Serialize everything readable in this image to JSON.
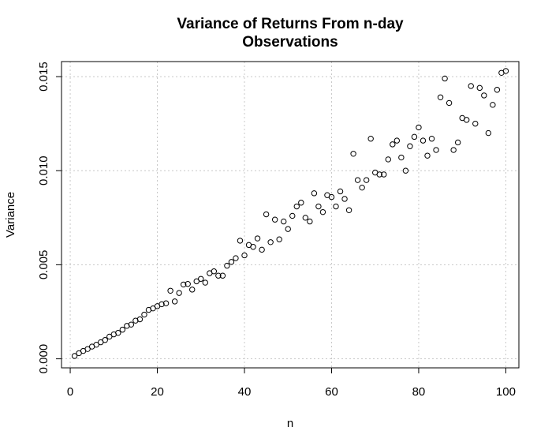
{
  "chart_data": {
    "type": "scatter",
    "title_lines": [
      "Variance of Returns From n-day",
      "Observations"
    ],
    "xlabel": "n",
    "ylabel": "Variance",
    "xlim": [
      -2,
      103
    ],
    "ylim": [
      -0.00048,
      0.0158
    ],
    "x_ticks": [
      0,
      20,
      40,
      60,
      80,
      100
    ],
    "x_tick_labels": [
      "0",
      "20",
      "40",
      "60",
      "80",
      "100"
    ],
    "y_ticks": [
      0.0,
      0.005,
      0.01,
      0.015
    ],
    "y_tick_labels": [
      "0.000",
      "0.005",
      "0.010",
      "0.015"
    ],
    "grid": true,
    "marker": "open-circle",
    "series": [
      {
        "x": [
          1,
          2,
          3,
          4,
          5,
          6,
          7,
          8,
          9,
          10,
          11,
          12,
          13,
          14,
          15,
          16,
          17,
          18,
          19,
          20,
          21,
          22,
          23,
          24,
          25,
          26,
          27,
          28,
          29,
          30,
          31,
          32,
          33,
          34,
          35,
          36,
          37,
          38,
          39,
          40,
          41,
          42,
          43,
          44,
          45,
          46,
          47,
          48,
          49,
          50,
          51,
          52,
          53,
          54,
          55,
          56,
          57,
          58,
          59,
          60,
          61,
          62,
          63,
          64,
          65,
          66,
          67,
          68,
          69,
          70,
          71,
          72,
          73,
          74,
          75,
          76,
          77,
          78,
          79,
          80,
          81,
          82,
          83,
          84,
          85,
          86,
          87,
          88,
          89,
          90,
          91,
          92,
          93,
          94,
          95,
          96,
          97,
          98,
          99,
          100
        ],
        "y": [
          0.00015,
          0.0003,
          0.00042,
          0.00052,
          0.00065,
          0.00075,
          0.00088,
          0.001,
          0.00118,
          0.0013,
          0.00138,
          0.00155,
          0.00175,
          0.00182,
          0.00203,
          0.0021,
          0.00235,
          0.0026,
          0.00268,
          0.0028,
          0.0029,
          0.00295,
          0.00362,
          0.00305,
          0.0035,
          0.00395,
          0.00398,
          0.00368,
          0.00412,
          0.00425,
          0.00405,
          0.00455,
          0.00465,
          0.00442,
          0.00442,
          0.00495,
          0.00515,
          0.00535,
          0.00628,
          0.0055,
          0.00605,
          0.00595,
          0.0064,
          0.0058,
          0.00768,
          0.0062,
          0.0074,
          0.00635,
          0.0073,
          0.0069,
          0.0076,
          0.0081,
          0.0083,
          0.0075,
          0.0073,
          0.0088,
          0.0081,
          0.0078,
          0.0087,
          0.0086,
          0.0081,
          0.0089,
          0.0085,
          0.0079,
          0.0109,
          0.0095,
          0.0091,
          0.0095,
          0.0117,
          0.0099,
          0.0098,
          0.0098,
          0.0106,
          0.0114,
          0.0116,
          0.0107,
          0.01,
          0.0113,
          0.0118,
          0.0123,
          0.0116,
          0.0108,
          0.0117,
          0.0111,
          0.0139,
          0.0149,
          0.0136,
          0.0111,
          0.0115,
          0.0128,
          0.0127,
          0.0145,
          0.0125,
          0.0144,
          0.014,
          0.012,
          0.0135,
          0.0143,
          0.0152,
          0.0153
        ]
      }
    ]
  }
}
